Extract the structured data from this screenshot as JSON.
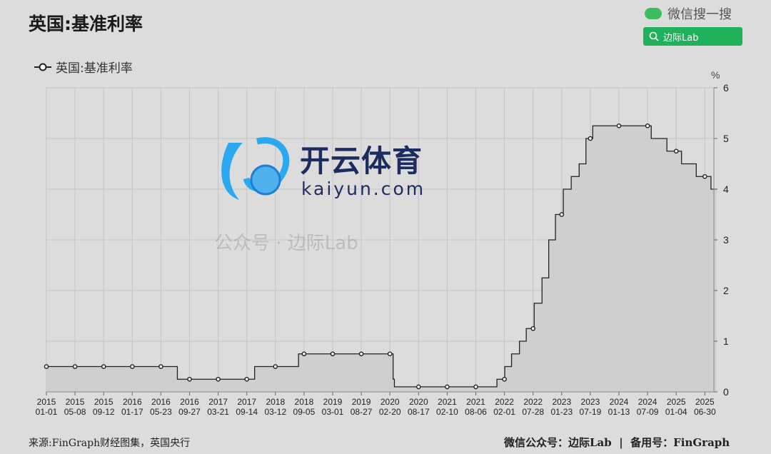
{
  "header": {
    "title": "英国:基准利率"
  },
  "legend": {
    "label": "英国:基准利率"
  },
  "wechat": {
    "label": "微信搜一搜",
    "search_text": "边际Lab",
    "icon": "wechat-icon",
    "accent": "#1fb25a"
  },
  "footer": {
    "source": "来源:FinGraph财经图集，英国央行",
    "right": "微信公众号：边际Lab  |  备用号：FinGraph"
  },
  "watermark": {
    "cn": "开云体育",
    "en": "kaiyun.com",
    "faint": "公众号 · 边际Lab"
  },
  "chart_data": {
    "type": "line",
    "step": true,
    "title": "英国:基准利率",
    "unit_label": "%",
    "y_axis_position": "right",
    "ylim": [
      0,
      6
    ],
    "yticks": [
      0,
      1,
      2,
      3,
      4,
      5,
      6
    ],
    "grid": true,
    "area_fill": true,
    "legend_position": "top-left",
    "x_ticks": [
      "2015-01-01",
      "2015-05-08",
      "2015-09-12",
      "2016-01-17",
      "2016-05-23",
      "2016-09-27",
      "2017-03-21",
      "2017-09-14",
      "2018-03-12",
      "2018-09-05",
      "2019-03-01",
      "2019-08-27",
      "2020-02-20",
      "2020-08-17",
      "2021-02-10",
      "2021-08-06",
      "2022-02-01",
      "2022-07-28",
      "2023-01-23",
      "2023-07-19",
      "2024-01-13",
      "2024-07-09",
      "2025-01-04",
      "2025-06-30"
    ],
    "series": [
      {
        "name": "英国:基准利率",
        "color": "#222222",
        "steps": [
          [
            "2015-01-01",
            0.5
          ],
          [
            "2016-08-04",
            0.25
          ],
          [
            "2017-11-02",
            0.5
          ],
          [
            "2018-08-02",
            0.75
          ],
          [
            "2020-03-11",
            0.25
          ],
          [
            "2020-03-19",
            0.1
          ],
          [
            "2021-12-16",
            0.25
          ],
          [
            "2022-02-03",
            0.5
          ],
          [
            "2022-03-17",
            0.75
          ],
          [
            "2022-05-05",
            1.0
          ],
          [
            "2022-06-16",
            1.25
          ],
          [
            "2022-08-04",
            1.75
          ],
          [
            "2022-09-22",
            2.25
          ],
          [
            "2022-11-03",
            3.0
          ],
          [
            "2022-12-15",
            3.5
          ],
          [
            "2023-02-02",
            4.0
          ],
          [
            "2023-03-23",
            4.25
          ],
          [
            "2023-05-11",
            4.5
          ],
          [
            "2023-06-22",
            5.0
          ],
          [
            "2023-08-03",
            5.25
          ],
          [
            "2024-08-01",
            5.0
          ],
          [
            "2024-11-07",
            4.75
          ],
          [
            "2025-02-06",
            4.5
          ],
          [
            "2025-05-08",
            4.25
          ],
          [
            "2025-08-07",
            4.0
          ],
          [
            "2025-09-10",
            4.0
          ]
        ]
      }
    ]
  }
}
